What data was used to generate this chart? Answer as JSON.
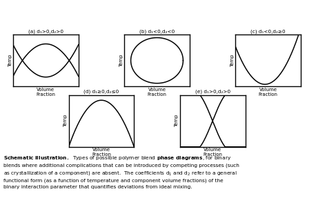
{
  "subplot_labels": [
    "(a) d₁>0,d₂>0",
    "(b) d₁<0,d₂<0",
    "(c) d₁<0,d₂≥0",
    "(d) d₁≥0,d₂≤0",
    "(e) d₁>0,d₂>0"
  ],
  "xlabel": "Volume\nFraction",
  "ylabel": "Temp",
  "background": "#ffffff",
  "line_color": "#000000",
  "caption_bold1": "Schematic illustration.",
  "caption_bold2": "phase diagrams",
  "caption_rest": "  Types of possible polymer blend {bold2}, for binary blends where additional complications that can be introduced by competing processes (such as crystallization of a component) are absent.  The coefficients d₁ and d₂ refer to a general functional form (as a function of temperature and component volume fractions) of the binary interaction parameter that quantifies deviations from ideal mixing."
}
